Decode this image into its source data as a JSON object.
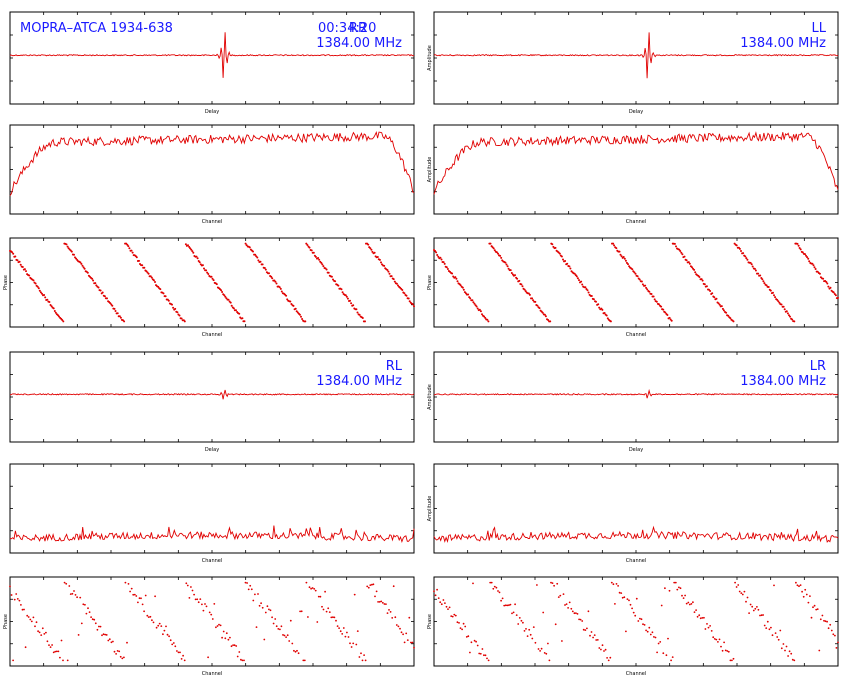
{
  "header": {
    "source_label": "MOPRA–ATCA 1934-638",
    "time_label": "00:34:20"
  },
  "colors": {
    "trace": "#e00000",
    "annotation": "#1a1aff",
    "frame": "#000000"
  },
  "panels": [
    {
      "pol": "RR",
      "freq": "1384.00 MHz",
      "amp_ylabel": "Amplitude",
      "phase_ylabel": "Phase",
      "delay_xlabel": "Delay",
      "amp_xlabel": "Channel",
      "phase_xlabel": "Channel"
    },
    {
      "pol": "LL",
      "freq": "1384.00 MHz",
      "amp_ylabel": "Amplitude",
      "phase_ylabel": "Phase",
      "delay_xlabel": "Delay",
      "amp_xlabel": "Channel",
      "phase_xlabel": "Channel"
    },
    {
      "pol": "RL",
      "freq": "1384.00 MHz",
      "amp_ylabel": "Amplitude",
      "phase_ylabel": "Phase",
      "delay_xlabel": "Delay",
      "amp_xlabel": "Channel",
      "phase_xlabel": "Channel"
    },
    {
      "pol": "LR",
      "freq": "1384.00 MHz",
      "amp_ylabel": "Amplitude",
      "phase_ylabel": "Phase",
      "delay_xlabel": "Delay",
      "amp_xlabel": "Channel",
      "phase_xlabel": "Channel"
    }
  ],
  "chart_data": [
    {
      "type": "line",
      "panel": "RR",
      "kind": "delay",
      "xlabel": "Delay",
      "xlim": [
        -256,
        256
      ],
      "peak_x": 0,
      "peak_amplitude": 1.0
    },
    {
      "type": "line",
      "panel": "RR",
      "kind": "amplitude",
      "xlabel": "Channel",
      "xlim": [
        0,
        512
      ],
      "shape": "bandpass",
      "ylim": [
        0,
        4.5
      ]
    },
    {
      "type": "scatter",
      "panel": "RR",
      "kind": "phase",
      "xlabel": "Channel",
      "xlim": [
        0,
        512
      ],
      "ylim": [
        -180,
        180
      ],
      "wraps": 6.7
    },
    {
      "type": "line",
      "panel": "LL",
      "kind": "delay",
      "xlabel": "Delay",
      "xlim": [
        -256,
        256
      ],
      "peak_x": 0,
      "peak_amplitude": 1.0
    },
    {
      "type": "line",
      "panel": "LL",
      "kind": "amplitude",
      "xlabel": "Channel",
      "xlim": [
        0,
        512
      ],
      "shape": "bandpass",
      "ylim": [
        0,
        4.5
      ]
    },
    {
      "type": "scatter",
      "panel": "LL",
      "kind": "phase",
      "xlabel": "Channel",
      "xlim": [
        0,
        512
      ],
      "ylim": [
        -180,
        180
      ],
      "wraps": 6.6
    },
    {
      "type": "line",
      "panel": "RL",
      "kind": "delay",
      "xlabel": "Delay",
      "xlim": [
        -256,
        256
      ],
      "peak_x": 0,
      "peak_amplitude": 0.2
    },
    {
      "type": "line",
      "panel": "RL",
      "kind": "amplitude",
      "xlabel": "Channel",
      "xlim": [
        0,
        512
      ],
      "shape": "flat",
      "ylim": [
        0,
        4.5
      ]
    },
    {
      "type": "scatter",
      "panel": "RL",
      "kind": "phase",
      "xlabel": "Channel",
      "xlim": [
        0,
        512
      ],
      "ylim": [
        -180,
        180
      ],
      "wraps": 6.7
    },
    {
      "type": "line",
      "panel": "LR",
      "kind": "delay",
      "xlabel": "Delay",
      "xlim": [
        -256,
        256
      ],
      "peak_x": 0,
      "peak_amplitude": 0.15
    },
    {
      "type": "line",
      "panel": "LR",
      "kind": "amplitude",
      "xlabel": "Channel",
      "xlim": [
        0,
        512
      ],
      "shape": "flat",
      "ylim": [
        0,
        4.5
      ]
    },
    {
      "type": "scatter",
      "panel": "LR",
      "kind": "phase",
      "xlabel": "Channel",
      "xlim": [
        0,
        512
      ],
      "ylim": [
        -180,
        180
      ],
      "wraps": 6.6
    }
  ]
}
